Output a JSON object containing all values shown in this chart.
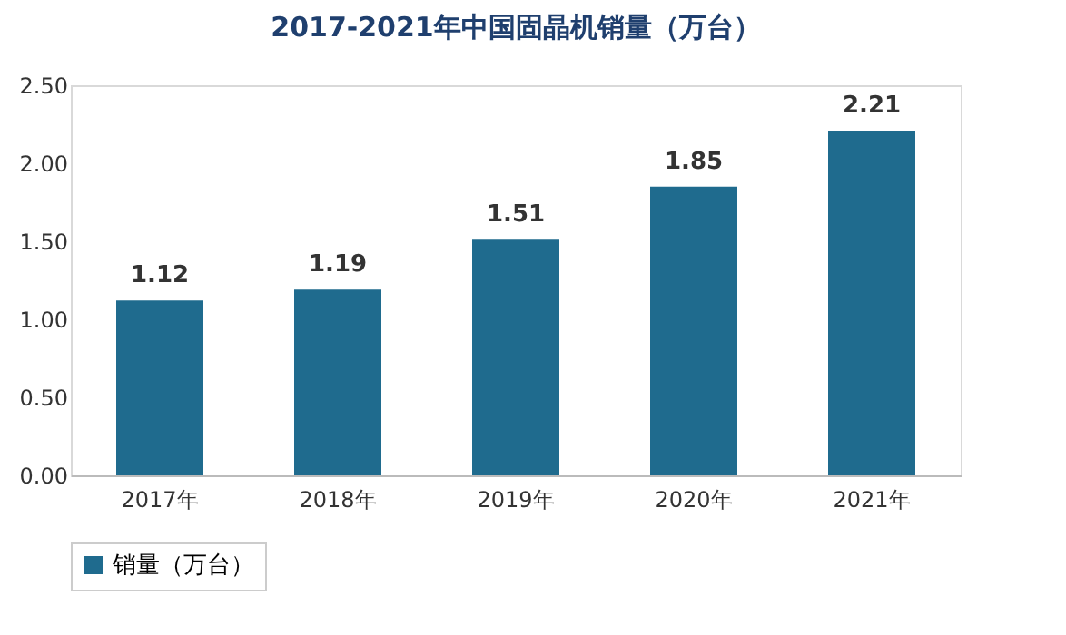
{
  "chart_data": {
    "type": "bar",
    "title": "2017-2021年中国固晶机销量（万台）",
    "categories": [
      "2017年",
      "2018年",
      "2019年",
      "2020年",
      "2021年"
    ],
    "series": [
      {
        "name": "销量（万台）",
        "color": "#1f6b8e",
        "values": [
          1.12,
          1.19,
          1.51,
          1.85,
          2.21
        ]
      }
    ],
    "ylim": [
      0,
      2.5
    ],
    "yticks": [
      {
        "value": 0,
        "label": "0.00"
      },
      {
        "value": 0.5,
        "label": "0.50"
      },
      {
        "value": 1,
        "label": "1.00"
      },
      {
        "value": 1.5,
        "label": "1.50"
      },
      {
        "value": 2,
        "label": "2.00"
      },
      {
        "value": 2.5,
        "label": "2.50"
      }
    ],
    "data_labels": true,
    "legend": "bottom",
    "grid": false
  }
}
